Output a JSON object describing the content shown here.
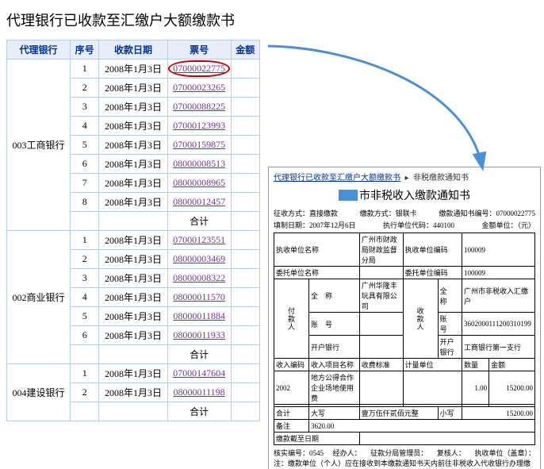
{
  "title": "代理银行已收款至汇缴户大额缴款书",
  "columns": [
    "代理银行",
    "序号",
    "收款日期",
    "票号",
    "金额"
  ],
  "subtotal_label": "合计",
  "banks": [
    {
      "name": "003工商银行",
      "rows": [
        {
          "seq": "1",
          "date": "2008年1月3日",
          "ticket": "07000022775",
          "circled": true
        },
        {
          "seq": "2",
          "date": "2008年1月3日",
          "ticket": "07000023265"
        },
        {
          "seq": "3",
          "date": "2008年1月3日",
          "ticket": "07000088225"
        },
        {
          "seq": "4",
          "date": "2008年1月3日",
          "ticket": "07000123993"
        },
        {
          "seq": "5",
          "date": "2008年1月3日",
          "ticket": "07000159875"
        },
        {
          "seq": "6",
          "date": "2008年1月3日",
          "ticket": "08000008513"
        },
        {
          "seq": "7",
          "date": "2008年1月3日",
          "ticket": "08000008965"
        },
        {
          "seq": "8",
          "date": "2008年1月3日",
          "ticket": "08000012457"
        }
      ]
    },
    {
      "name": "002商业银行",
      "rows": [
        {
          "seq": "1",
          "date": "2008年1月3日",
          "ticket": "07000123551"
        },
        {
          "seq": "2",
          "date": "2008年1月3日",
          "ticket": "08000003469"
        },
        {
          "seq": "3",
          "date": "2008年1月3日",
          "ticket": "08000008322"
        },
        {
          "seq": "4",
          "date": "2008年1月3日",
          "ticket": "08000011570"
        },
        {
          "seq": "5",
          "date": "2008年1月3日",
          "ticket": "08000011884"
        },
        {
          "seq": "6",
          "date": "2008年1月3日",
          "ticket": "08000011933"
        }
      ]
    },
    {
      "name": "004建设银行",
      "rows": [
        {
          "seq": "1",
          "date": "2008年1月3日",
          "ticket": "07000147604"
        },
        {
          "seq": "2",
          "date": "2008年1月3日",
          "ticket": "08000011198"
        }
      ]
    }
  ],
  "detail": {
    "breadcrumb_a": "代理银行已收款至汇缴户大额缴款书",
    "breadcrumb_b": "非税缴款通知书",
    "title_suffix": "市非税收入缴款通知书",
    "meta1": {
      "zskfs_l": "征收方式：",
      "zskfs_v": "直接缴款",
      "jkfs_l": "缴款方式：",
      "jkfs_v": "银联卡",
      "bh_l": "缴款通知书编号：",
      "bh_v": "07000022775"
    },
    "meta2": {
      "zzrq_l": "填制日期：",
      "zzrq_v": "2007年12月6日",
      "dw_l": "执行单位代码：",
      "dw_v": "440100",
      "je_l": "金额单位：",
      "je_v": "（元）"
    },
    "form": {
      "zxdw_l": "执收单位名称",
      "zxdw_v": "广州市财政局财政监督分局",
      "zxbm_l": "执收单位编码",
      "zxbm_v": "100009",
      "wtdw_l": "委托单位名称",
      "wtdw_v": "",
      "wtbm_l": "委托单位编码",
      "wtbm_v": "100009",
      "fkr_col": "付款人",
      "skr_col": "收款人",
      "qc_l": "全　称",
      "qc_v": "广州华隆丰玩具有限公司",
      "sk_qc_v": "广州市非税收入汇缴户",
      "zh_l": "账　号",
      "zh_v": "",
      "sk_zh_v": "3602000111200310199",
      "kh_l": "开户银行",
      "kh_v": "",
      "sk_kh_v": "工商银行第一支行",
      "hdr_srbm": "收入编码",
      "hdr_xmmc": "收入项目名称",
      "hdr_sfbz": "收费标准",
      "hdr_jldw": "计量单位",
      "hdr_sl": "数量",
      "hdr_je": "金额",
      "row_srbm": "2002",
      "row_xmmc": "地方公得合作企业场地使用费",
      "row_sl": "1.00",
      "row_je": "15200.00",
      "hj_l": "合计",
      "dx_l": "大写",
      "dx_v": "壹万伍仟贰佰元整",
      "xx_l": "小写",
      "xx_v": "15200.00",
      "bz_l": "备注",
      "bz_v": "3620.00",
      "jkjz_l": "缴款截至日期"
    },
    "footer": {
      "a_l": "核实编号：",
      "a_v": "0545",
      "b": "经办人：",
      "c": "征款分局管理员：",
      "d": "复核人：",
      "e": "执收单位（盖章）："
    },
    "note_a": "注：缴款单位（个人）应在接收到本缴款通知书",
    "note_b": "天内前往非税收入代收银行办理缴款手续。超过缴款截止日期缴款的，代收银不予受理。"
  },
  "colors": {
    "header_bg": "#e8eef7",
    "border": "#b8cce4",
    "link": "#7030a0",
    "circle": "#c00000",
    "arrow": "#4a90d9"
  }
}
